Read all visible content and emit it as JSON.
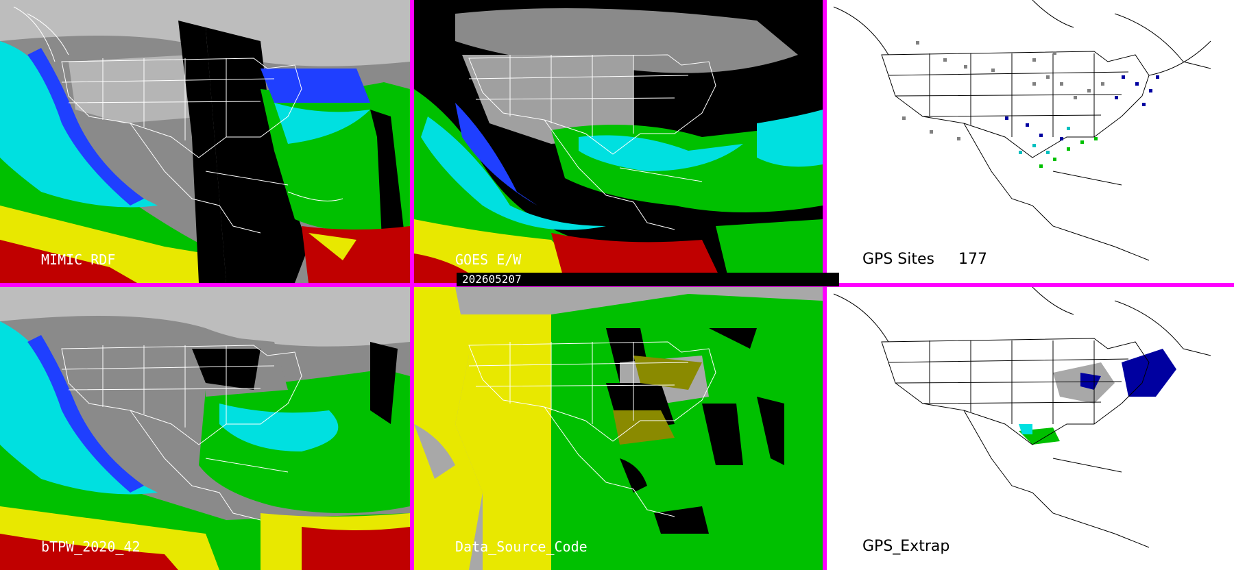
{
  "panels": [
    {
      "label": "MIMIC RDF"
    },
    {
      "label": "GOES E/W"
    },
    {
      "label": "GPS Sites",
      "count": "177"
    },
    {
      "label": "bTPW_2020_42"
    },
    {
      "label": "Data_Source_Code"
    },
    {
      "label": "GPS_Extrap"
    }
  ],
  "timestamp": "202605207",
  "colors": {
    "divider": "#ff00ff",
    "very_dry": "#0000a0",
    "dry": "#1f3fff",
    "moist": "#00ffff",
    "moister": "#00c000",
    "wet": "#ffff00",
    "very_wet": "#c00000",
    "no_data": "#000000",
    "satellite_gray": "#9a9a9a",
    "source_yellow": "#e8e800",
    "source_green": "#00c000",
    "source_gray": "#a8a8a8",
    "source_olive": "#8a8a00"
  }
}
